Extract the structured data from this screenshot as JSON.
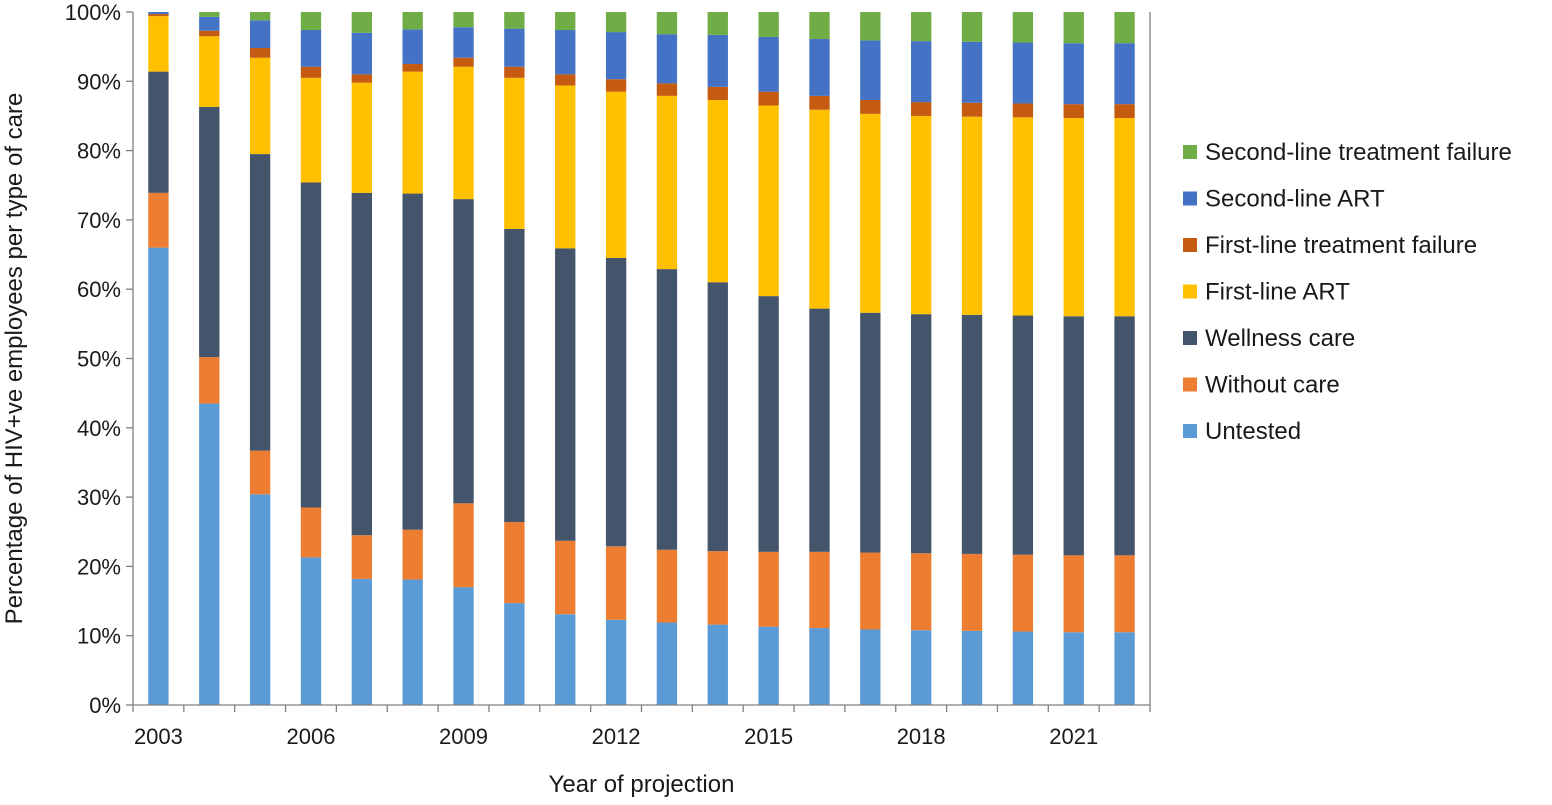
{
  "chart_data": {
    "type": "bar",
    "stacked": true,
    "stack_mode": "percent",
    "title": "",
    "xlabel": "Year of projection",
    "ylabel": "Percentage of HIV+ve employees per type of care",
    "ylim": [
      0,
      100
    ],
    "yticks": [
      "0%",
      "10%",
      "20%",
      "30%",
      "40%",
      "50%",
      "60%",
      "70%",
      "80%",
      "90%",
      "100%"
    ],
    "xtick_labels": [
      "2003",
      "2006",
      "2009",
      "2012",
      "2015",
      "2018",
      "2021"
    ],
    "grid": false,
    "legend_position": "right",
    "categories": [
      "2003",
      "2004",
      "2005",
      "2006",
      "2007",
      "2008",
      "2009",
      "2010",
      "2011",
      "2012",
      "2013",
      "2014",
      "2015",
      "2016",
      "2017",
      "2018",
      "2019",
      "2020",
      "2021",
      "2022"
    ],
    "series": [
      {
        "name": "Untested",
        "color": "#5B9BD5",
        "values": [
          66.0,
          43.5,
          30.4,
          21.3,
          18.2,
          18.1,
          17.0,
          14.7,
          13.1,
          12.3,
          11.9,
          11.6,
          11.3,
          11.1,
          10.9,
          10.8,
          10.7,
          10.6,
          10.5,
          10.5
        ]
      },
      {
        "name": "Without care",
        "color": "#ED7D31",
        "values": [
          7.9,
          6.7,
          6.3,
          7.2,
          6.3,
          7.2,
          12.1,
          11.7,
          10.6,
          10.6,
          10.5,
          10.6,
          10.8,
          11.0,
          11.1,
          11.1,
          11.1,
          11.1,
          11.1,
          11.1
        ]
      },
      {
        "name": "Wellness care",
        "color": "#44546A",
        "values": [
          17.5,
          36.1,
          42.8,
          46.9,
          49.4,
          48.5,
          43.9,
          42.3,
          42.2,
          41.6,
          40.5,
          38.8,
          36.9,
          35.1,
          34.6,
          34.5,
          34.5,
          34.5,
          34.5,
          34.5
        ]
      },
      {
        "name": "First-line ART",
        "color": "#FFC000",
        "values": [
          8.0,
          10.2,
          13.9,
          15.1,
          15.9,
          17.6,
          19.1,
          21.8,
          23.5,
          24.0,
          25.0,
          26.3,
          27.5,
          28.7,
          28.7,
          28.6,
          28.6,
          28.6,
          28.6,
          28.6
        ]
      },
      {
        "name": "First-line treatment failure",
        "color": "#C55A11",
        "values": [
          0.3,
          0.8,
          1.4,
          1.6,
          1.2,
          1.1,
          1.3,
          1.6,
          1.6,
          1.8,
          1.8,
          1.9,
          2.0,
          2.0,
          2.0,
          2.0,
          2.0,
          2.0,
          2.0,
          2.0
        ]
      },
      {
        "name": "Second-line ART",
        "color": "#4472C4",
        "values": [
          0.3,
          2.0,
          4.0,
          5.3,
          6.0,
          5.0,
          4.4,
          5.5,
          6.4,
          6.8,
          7.1,
          7.5,
          7.9,
          8.2,
          8.6,
          8.8,
          8.8,
          8.8,
          8.8,
          8.8
        ]
      },
      {
        "name": "Second-line treatment failure",
        "color": "#70AD47",
        "values": [
          0.0,
          0.7,
          1.2,
          2.6,
          3.0,
          2.5,
          2.2,
          2.4,
          2.6,
          2.9,
          3.2,
          3.3,
          3.6,
          3.9,
          4.1,
          4.2,
          4.3,
          4.4,
          4.5,
          4.5
        ]
      }
    ],
    "legend_order": [
      "Second-line treatment failure",
      "Second-line ART",
      "First-line treatment failure",
      "First-line ART",
      "Wellness care",
      "Without care",
      "Untested"
    ]
  }
}
